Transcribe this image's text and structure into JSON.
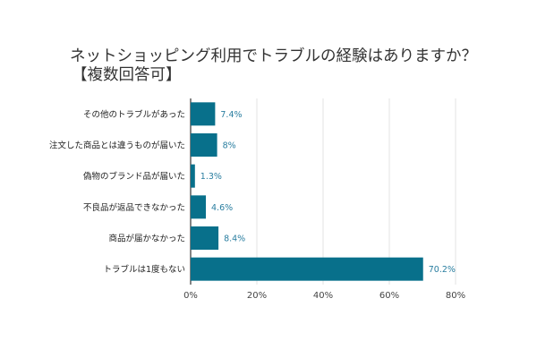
{
  "chart_data": {
    "type": "bar",
    "orientation": "horizontal",
    "title": "ネットショッピング利用でトラブルの経験はありますか？",
    "subtitle": "【複数回答可】",
    "categories": [
      "その他のトラブルがあった",
      "注文した商品とは違うものが届いた",
      "偽物のブランド品が届いた",
      "不良品が返品できなかった",
      "商品が届かなかった",
      "トラブルは1度もない"
    ],
    "values": [
      7.4,
      8,
      1.3,
      4.6,
      8.4,
      70.2
    ],
    "data_labels": [
      "7.4%",
      "8%",
      "1.3%",
      "4.6%",
      "8.4%",
      "70.2%"
    ],
    "x_ticks": [
      "0%",
      "20%",
      "40%",
      "60%",
      "80%"
    ],
    "xlim": [
      0,
      80
    ],
    "grid": "vertical",
    "bar_color": "#08708b",
    "label_color": "#2a7ea0"
  }
}
